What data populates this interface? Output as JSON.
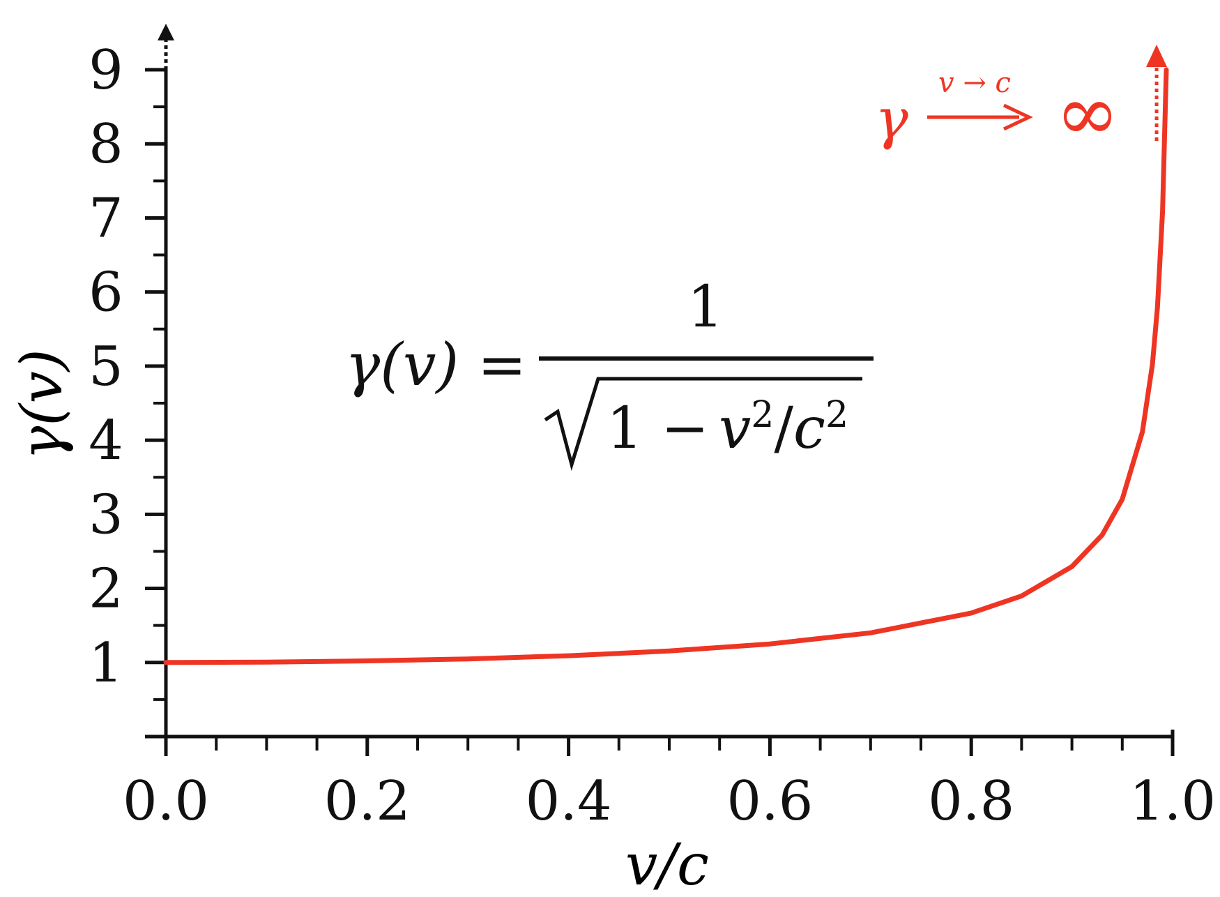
{
  "chart_data": {
    "type": "line",
    "xlabel": "v/c",
    "ylabel": "γ(v)",
    "xlim": [
      0,
      1.0
    ],
    "ylim": [
      0,
      9
    ],
    "x_ticks": [
      "0.0",
      "0.2",
      "0.4",
      "0.6",
      "0.8",
      "1.0"
    ],
    "y_ticks": [
      "1",
      "2",
      "3",
      "4",
      "5",
      "6",
      "7",
      "8",
      "9"
    ],
    "series": [
      {
        "color": "#ee3524",
        "x": [
          0.0,
          0.1,
          0.2,
          0.3,
          0.4,
          0.5,
          0.6,
          0.7,
          0.8,
          0.85,
          0.9,
          0.93,
          0.95,
          0.97,
          0.98,
          0.985,
          0.99,
          0.9938
        ],
        "y": [
          1.0,
          1.005,
          1.021,
          1.048,
          1.091,
          1.155,
          1.25,
          1.4,
          1.667,
          1.898,
          2.294,
          2.72,
          3.203,
          4.113,
          5.025,
          5.795,
          7.089,
          9.0
        ]
      }
    ],
    "annotations": {
      "formula": {
        "lhs": "γ(v) =",
        "numerator": "1",
        "denominator_one": "1 −",
        "denominator_v": "v",
        "denominator_c": "c",
        "exp": "2",
        "slash": "/"
      },
      "limit": {
        "gamma": "γ",
        "condition": "v → c",
        "infinity": "∞",
        "color": "#ee3524"
      }
    }
  }
}
